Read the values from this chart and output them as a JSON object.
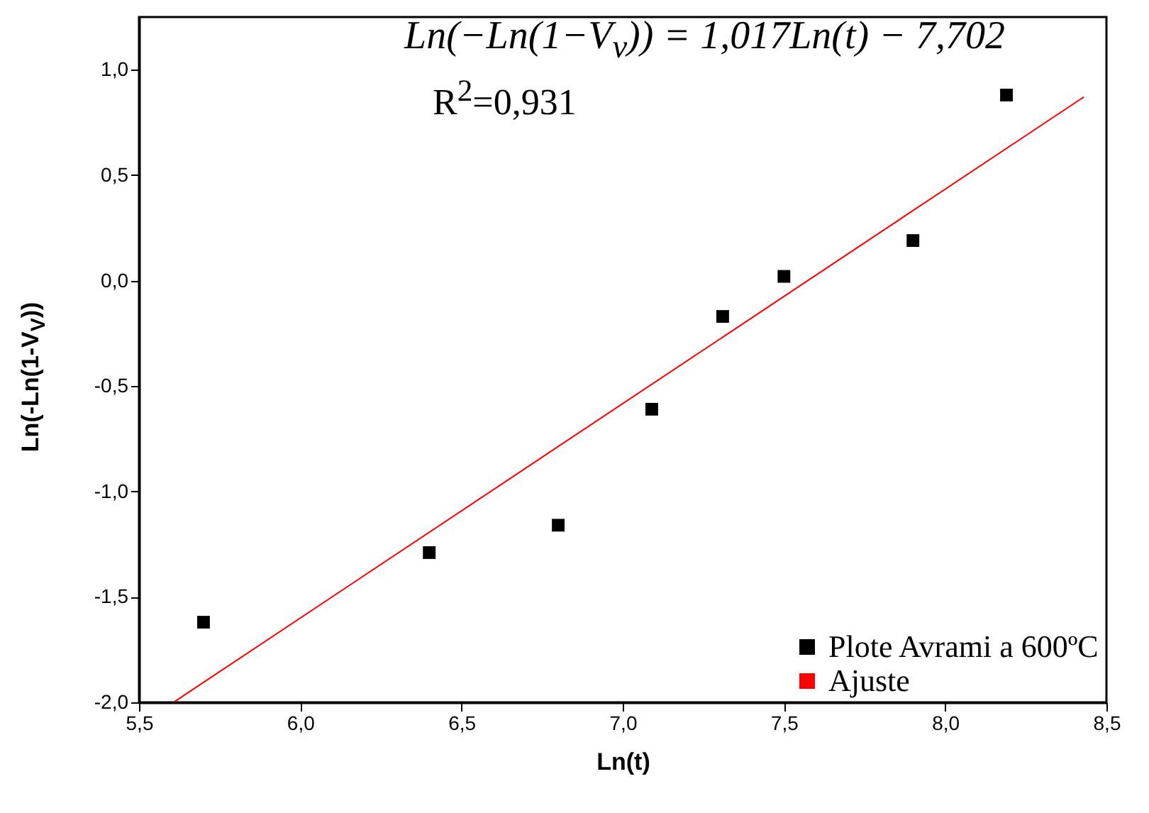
{
  "chart_data": {
    "type": "scatter",
    "xlabel": "Ln(t)",
    "ylabel": "Ln(-Ln(1-V$_{V}$))",
    "annotations": [
      "Ln(−Ln(1−V$_{v}$)) = 1,017Ln(t) − 7,702",
      "R$^{2}$=0,931"
    ],
    "series": [
      {
        "name": "Plote Avrami a 600ºC",
        "marker": "square",
        "color": "#000000",
        "x": [
          5.7,
          6.4,
          6.8,
          7.09,
          7.31,
          7.5,
          7.9,
          8.19
        ],
        "values": [
          -1.62,
          -1.29,
          -1.16,
          -0.61,
          -0.17,
          0.02,
          0.19,
          0.88
        ]
      },
      {
        "name": "Ajuste",
        "type": "line",
        "color": "#ff0000",
        "x": [
          5.61,
          8.43
        ],
        "values": [
          -1.997,
          0.871
        ]
      }
    ],
    "xlim": [
      5.5,
      8.5
    ],
    "ylim": [
      -2.0,
      1.25
    ],
    "xticks": [
      {
        "value": 5.5,
        "label": "5,5"
      },
      {
        "value": 6.0,
        "label": "6,0"
      },
      {
        "value": 6.5,
        "label": "6,5"
      },
      {
        "value": 7.0,
        "label": "7,0"
      },
      {
        "value": 7.5,
        "label": "7,5"
      },
      {
        "value": 8.0,
        "label": "8,0"
      },
      {
        "value": 8.5,
        "label": "8,5"
      }
    ],
    "yticks": [
      {
        "value": -2.0,
        "label": "-2,0"
      },
      {
        "value": -1.5,
        "label": "-1,5"
      },
      {
        "value": -1.0,
        "label": "-1,0"
      },
      {
        "value": -0.5,
        "label": "-0,5"
      },
      {
        "value": 0,
        "label": "0,0"
      },
      {
        "value": 0.5,
        "label": "0,5"
      },
      {
        "value": 1.0,
        "label": "1,0"
      }
    ],
    "line_style": "solid",
    "grid": false,
    "legend": "bottom right"
  }
}
